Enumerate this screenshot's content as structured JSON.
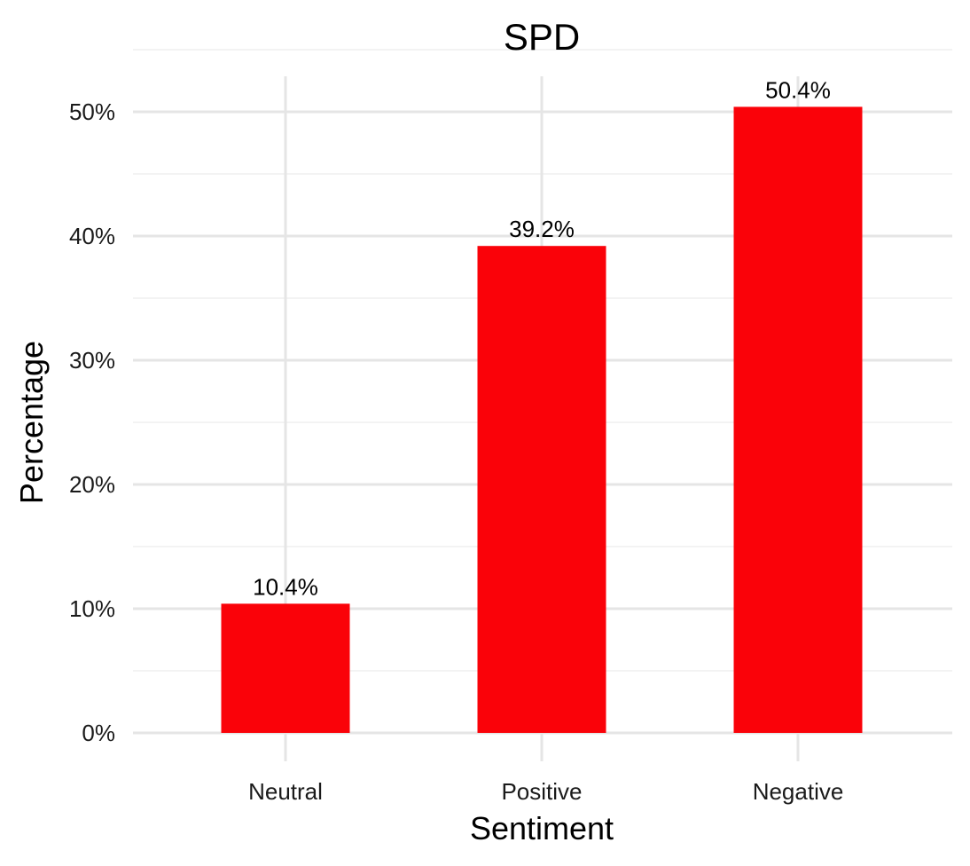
{
  "chart_data": {
    "type": "bar",
    "title": "SPD",
    "xlabel": "Sentiment",
    "ylabel": "Percentage",
    "categories": [
      "Neutral",
      "Positive",
      "Negative"
    ],
    "values": [
      10.4,
      39.2,
      50.4
    ],
    "data_labels": [
      "10.4%",
      "39.2%",
      "50.4%"
    ],
    "ylim": [
      0,
      50
    ],
    "y_ticks": [
      0,
      10,
      20,
      30,
      40,
      50
    ],
    "y_tick_labels": [
      "0%",
      "10%",
      "20%",
      "30%",
      "40%",
      "50%"
    ],
    "grid": true,
    "legend": "none",
    "bar_color": "#fa0209"
  }
}
